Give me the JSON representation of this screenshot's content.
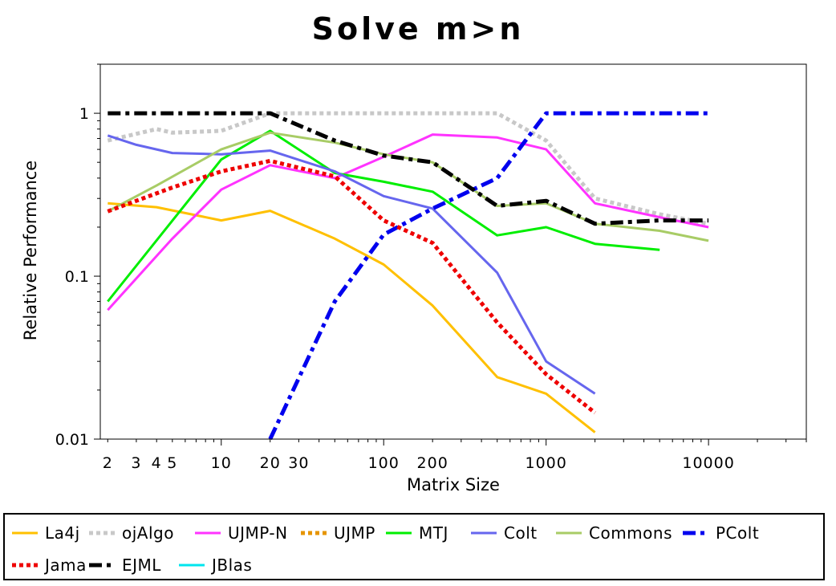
{
  "chart_data": {
    "type": "line",
    "title": "Solve m>n",
    "xlabel": "Matrix Size",
    "ylabel": "Relative Performance",
    "xscale": "log",
    "yscale": "log",
    "xlim": [
      1.8,
      40000
    ],
    "ylim": [
      0.01,
      2
    ],
    "x_ticks": [
      2,
      3,
      4,
      5,
      10,
      20,
      30,
      100,
      200,
      1000,
      10000
    ],
    "x_tick_labels": [
      "2",
      "3",
      "4",
      "5",
      "10",
      "20",
      "30",
      "100",
      "200",
      "1000",
      "10000"
    ],
    "y_ticks": [
      0.01,
      0.1,
      1
    ],
    "y_tick_labels": [
      "0.01",
      "0.1",
      "1"
    ],
    "grid": false,
    "legend_position": "bottom",
    "series": [
      {
        "name": "La4j",
        "color": "#FFC000",
        "dash": "solid",
        "x": [
          2,
          4,
          10,
          20,
          50,
          100,
          200,
          500,
          1000,
          2000
        ],
        "y": [
          0.28,
          0.265,
          0.22,
          0.252,
          0.17,
          0.118,
          0.066,
          0.024,
          0.019,
          0.011
        ]
      },
      {
        "name": "ojAlgo",
        "color": "#C8C8C8",
        "dash": "dot",
        "x": [
          2,
          4,
          5,
          10,
          20,
          50,
          100,
          200,
          500,
          1000,
          2000,
          5000,
          10000
        ],
        "y": [
          0.68,
          0.8,
          0.76,
          0.78,
          1.0,
          1.0,
          1.0,
          1.0,
          1.0,
          0.68,
          0.3,
          0.24,
          0.21
        ]
      },
      {
        "name": "UJMP-N",
        "color": "#FF33FF",
        "dash": "solid",
        "x": [
          2,
          5,
          10,
          20,
          50,
          100,
          200,
          500,
          1000,
          2000,
          5000,
          10000
        ],
        "y": [
          0.062,
          0.17,
          0.34,
          0.48,
          0.4,
          0.54,
          0.74,
          0.71,
          0.6,
          0.28,
          0.23,
          0.2
        ]
      },
      {
        "name": "UJMP",
        "color": "#E69500",
        "dash": "dot",
        "x": [],
        "y": []
      },
      {
        "name": "MTJ",
        "color": "#00EE00",
        "dash": "solid",
        "x": [
          2,
          10,
          20,
          50,
          100,
          200,
          500,
          1000,
          2000,
          5000
        ],
        "y": [
          0.07,
          0.52,
          0.78,
          0.43,
          0.38,
          0.33,
          0.178,
          0.2,
          0.158,
          0.145
        ]
      },
      {
        "name": "Colt",
        "color": "#6666EE",
        "dash": "solid",
        "x": [
          2,
          3,
          5,
          10,
          20,
          50,
          100,
          200,
          500,
          1000,
          2000
        ],
        "y": [
          0.73,
          0.64,
          0.57,
          0.56,
          0.59,
          0.44,
          0.31,
          0.26,
          0.105,
          0.03,
          0.019
        ]
      },
      {
        "name": "Commons",
        "color": "#A8CC66",
        "dash": "solid",
        "x": [
          2,
          4,
          10,
          20,
          50,
          100,
          200,
          500,
          1000,
          2000,
          5000,
          10000
        ],
        "y": [
          0.25,
          0.36,
          0.6,
          0.76,
          0.66,
          0.56,
          0.5,
          0.27,
          0.28,
          0.21,
          0.19,
          0.165
        ]
      },
      {
        "name": "PColt",
        "color": "#0000EE",
        "dash": "dashdot",
        "x": [
          20,
          50,
          100,
          200,
          500,
          1000,
          2000,
          5000,
          10000
        ],
        "y": [
          0.01,
          0.07,
          0.18,
          0.26,
          0.4,
          1.0,
          1.0,
          1.0,
          1.0
        ]
      },
      {
        "name": "Jama",
        "color": "#EE0000",
        "dash": "dot",
        "x": [
          2,
          5,
          10,
          20,
          50,
          100,
          200,
          500,
          1000,
          2000
        ],
        "y": [
          0.25,
          0.35,
          0.44,
          0.51,
          0.41,
          0.22,
          0.16,
          0.052,
          0.025,
          0.0145
        ]
      },
      {
        "name": "EJML",
        "color": "#000000",
        "dash": "dashdot",
        "x": [
          2,
          20,
          50,
          100,
          200,
          500,
          1000,
          2000,
          5000,
          10000
        ],
        "y": [
          1.0,
          1.0,
          0.68,
          0.55,
          0.5,
          0.27,
          0.29,
          0.21,
          0.22,
          0.22
        ]
      },
      {
        "name": "JBlas",
        "color": "#00E5EE",
        "dash": "solid",
        "x": [],
        "y": []
      }
    ]
  }
}
